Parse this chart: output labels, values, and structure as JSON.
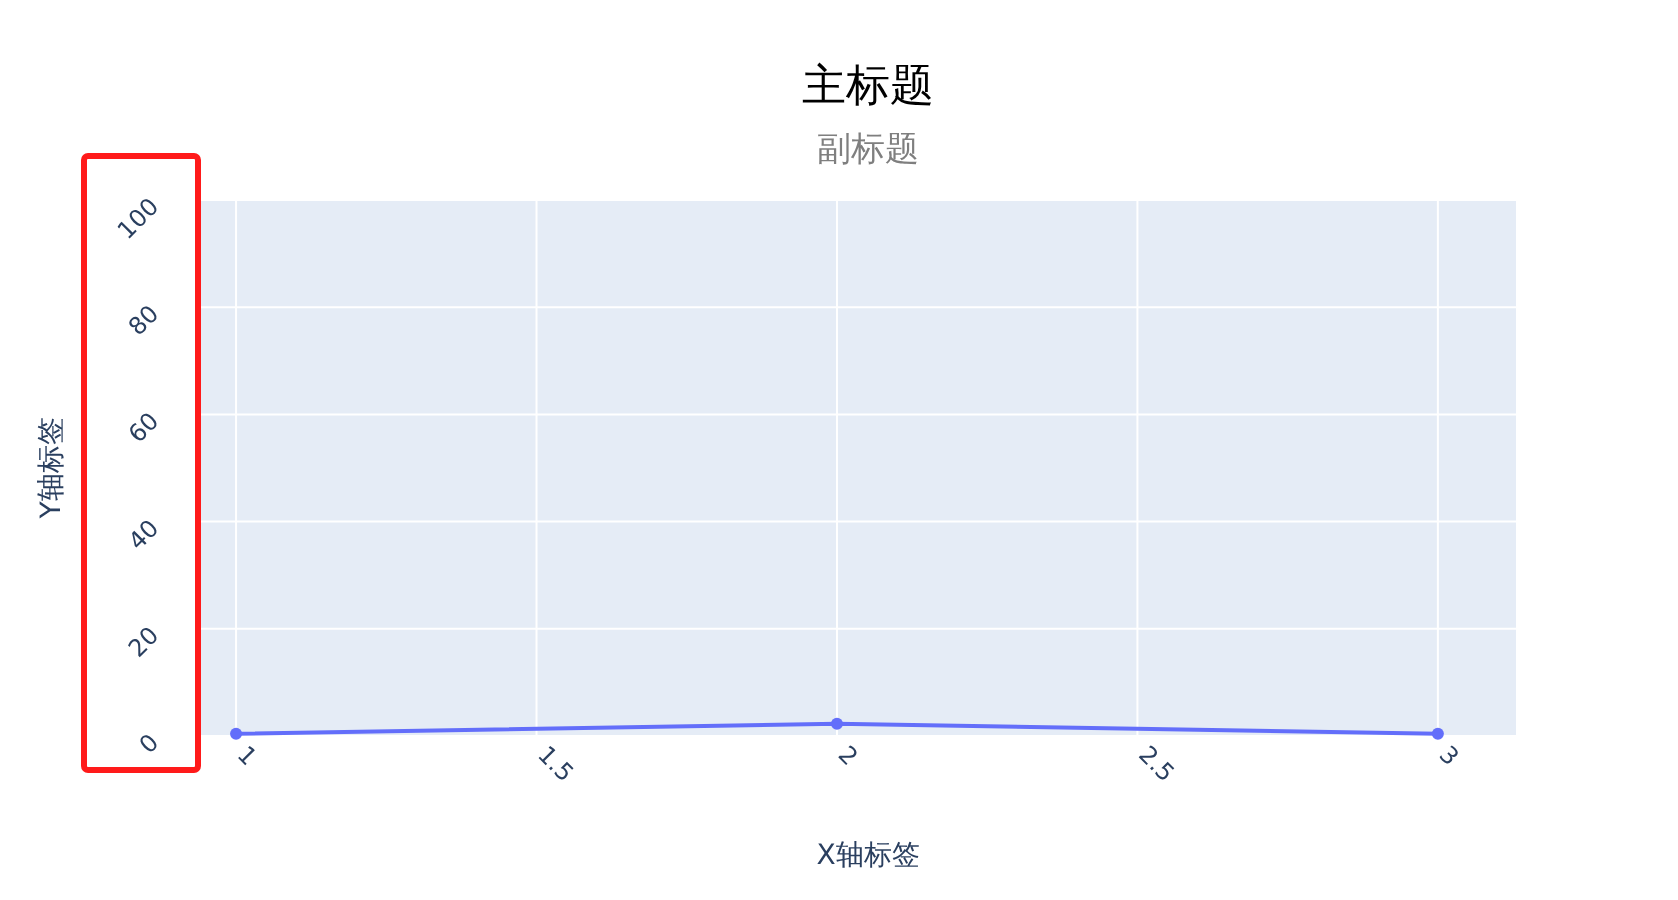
{
  "chart_data": {
    "type": "line",
    "title": "主标题",
    "subtitle": "副标题",
    "xlabel": "X轴标签",
    "ylabel": "Y轴标签",
    "x": [
      1,
      2,
      3
    ],
    "series": [
      {
        "color": "#636efa",
        "values": [
          0.4,
          2.3,
          0.4
        ]
      }
    ],
    "xlim": [
      0.94,
      3.13
    ],
    "ylim": [
      0,
      100
    ],
    "xticks": [
      1,
      1.5,
      2,
      2.5,
      3
    ],
    "yticks": [
      0,
      20,
      40,
      60,
      80,
      100
    ],
    "grid": true,
    "marker": "circle"
  }
}
